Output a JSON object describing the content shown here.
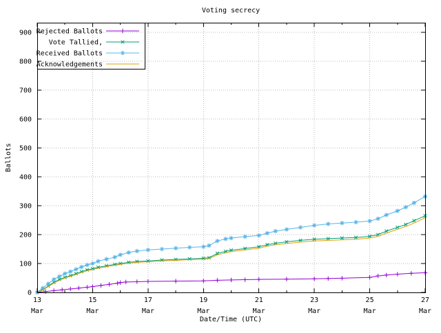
{
  "chart_data": {
    "type": "line",
    "title": "Voting secrecy",
    "xlabel": "Date/Time (UTC)",
    "ylabel": "Ballots",
    "xlim": [
      0,
      14
    ],
    "ylim": [
      0,
      900
    ],
    "ytick_step": 100,
    "grid": true,
    "legend_position": "top-left",
    "xticks": [
      {
        "x": 0,
        "label": "13",
        "sub": "Mar"
      },
      {
        "x": 2,
        "label": "15",
        "sub": "Mar"
      },
      {
        "x": 4,
        "label": "17",
        "sub": "Mar"
      },
      {
        "x": 6,
        "label": "19",
        "sub": "Mar"
      },
      {
        "x": 8,
        "label": "21",
        "sub": "Mar"
      },
      {
        "x": 10,
        "label": "23",
        "sub": "Mar"
      },
      {
        "x": 12,
        "label": "25",
        "sub": "Mar"
      },
      {
        "x": 14,
        "label": "27",
        "sub": "Mar"
      }
    ],
    "x_minor_ticks": [
      1,
      3,
      5,
      7,
      9,
      11,
      13
    ],
    "series": [
      {
        "name": "Rejected Ballots",
        "color": "#9400d3",
        "marker": "plus",
        "points": [
          [
            0,
            0
          ],
          [
            0.3,
            3
          ],
          [
            0.6,
            6
          ],
          [
            0.9,
            9
          ],
          [
            1.2,
            12
          ],
          [
            1.5,
            15
          ],
          [
            1.8,
            18
          ],
          [
            2.0,
            20
          ],
          [
            2.3,
            24
          ],
          [
            2.6,
            28
          ],
          [
            2.9,
            32
          ],
          [
            3.0,
            34
          ],
          [
            3.2,
            36
          ],
          [
            3.6,
            37
          ],
          [
            4.0,
            38
          ],
          [
            5.0,
            39
          ],
          [
            6.0,
            40
          ],
          [
            6.5,
            42
          ],
          [
            7.0,
            43
          ],
          [
            7.5,
            44
          ],
          [
            8.0,
            45
          ],
          [
            9.0,
            46
          ],
          [
            10.0,
            47
          ],
          [
            10.5,
            48
          ],
          [
            11.0,
            49
          ],
          [
            12.0,
            52
          ],
          [
            12.3,
            57
          ],
          [
            12.6,
            60
          ],
          [
            13.0,
            63
          ],
          [
            13.5,
            66
          ],
          [
            14.0,
            68
          ]
        ]
      },
      {
        "name": "Vote Tallied,",
        "color": "#009e73",
        "marker": "x",
        "points": [
          [
            0,
            0
          ],
          [
            0.2,
            10
          ],
          [
            0.4,
            22
          ],
          [
            0.6,
            35
          ],
          [
            0.8,
            45
          ],
          [
            1.0,
            52
          ],
          [
            1.2,
            58
          ],
          [
            1.4,
            65
          ],
          [
            1.6,
            72
          ],
          [
            1.8,
            78
          ],
          [
            2.0,
            82
          ],
          [
            2.2,
            87
          ],
          [
            2.5,
            92
          ],
          [
            2.8,
            97
          ],
          [
            3.0,
            100
          ],
          [
            3.3,
            104
          ],
          [
            3.6,
            107
          ],
          [
            4.0,
            109
          ],
          [
            4.5,
            112
          ],
          [
            5.0,
            114
          ],
          [
            5.5,
            116
          ],
          [
            6.0,
            118
          ],
          [
            6.2,
            120
          ],
          [
            6.5,
            135
          ],
          [
            6.8,
            142
          ],
          [
            7.0,
            146
          ],
          [
            7.5,
            152
          ],
          [
            8.0,
            158
          ],
          [
            8.3,
            165
          ],
          [
            8.6,
            170
          ],
          [
            9.0,
            175
          ],
          [
            9.5,
            180
          ],
          [
            10.0,
            184
          ],
          [
            10.5,
            186
          ],
          [
            11.0,
            188
          ],
          [
            11.5,
            190
          ],
          [
            12.0,
            194
          ],
          [
            12.3,
            200
          ],
          [
            12.6,
            212
          ],
          [
            13.0,
            225
          ],
          [
            13.3,
            235
          ],
          [
            13.6,
            248
          ],
          [
            14.0,
            265
          ]
        ]
      },
      {
        "name": "Received Ballots",
        "color": "#56b4e9",
        "marker": "star",
        "points": [
          [
            0,
            0
          ],
          [
            0.2,
            15
          ],
          [
            0.4,
            30
          ],
          [
            0.6,
            45
          ],
          [
            0.8,
            55
          ],
          [
            1.0,
            65
          ],
          [
            1.2,
            72
          ],
          [
            1.4,
            80
          ],
          [
            1.6,
            88
          ],
          [
            1.8,
            95
          ],
          [
            2.0,
            100
          ],
          [
            2.2,
            108
          ],
          [
            2.5,
            115
          ],
          [
            2.8,
            122
          ],
          [
            3.0,
            130
          ],
          [
            3.3,
            138
          ],
          [
            3.6,
            143
          ],
          [
            4.0,
            147
          ],
          [
            4.5,
            150
          ],
          [
            5.0,
            153
          ],
          [
            5.5,
            156
          ],
          [
            6.0,
            158
          ],
          [
            6.2,
            162
          ],
          [
            6.5,
            178
          ],
          [
            6.8,
            185
          ],
          [
            7.0,
            188
          ],
          [
            7.5,
            193
          ],
          [
            8.0,
            197
          ],
          [
            8.3,
            205
          ],
          [
            8.6,
            212
          ],
          [
            9.0,
            218
          ],
          [
            9.5,
            225
          ],
          [
            10.0,
            232
          ],
          [
            10.5,
            237
          ],
          [
            11.0,
            240
          ],
          [
            11.5,
            243
          ],
          [
            12.0,
            247
          ],
          [
            12.3,
            255
          ],
          [
            12.6,
            268
          ],
          [
            13.0,
            282
          ],
          [
            13.3,
            295
          ],
          [
            13.6,
            310
          ],
          [
            14.0,
            332
          ]
        ]
      },
      {
        "name": "Acknowledgements",
        "color": "#e69f00",
        "marker": "none",
        "points": [
          [
            0,
            0
          ],
          [
            0.2,
            8
          ],
          [
            0.4,
            20
          ],
          [
            0.6,
            32
          ],
          [
            0.8,
            42
          ],
          [
            1.0,
            50
          ],
          [
            1.2,
            56
          ],
          [
            1.4,
            62
          ],
          [
            1.6,
            69
          ],
          [
            1.8,
            75
          ],
          [
            2.0,
            79
          ],
          [
            2.2,
            84
          ],
          [
            2.5,
            89
          ],
          [
            2.8,
            94
          ],
          [
            3.0,
            97
          ],
          [
            3.3,
            101
          ],
          [
            3.6,
            104
          ],
          [
            4.0,
            106
          ],
          [
            4.5,
            109
          ],
          [
            5.0,
            111
          ],
          [
            5.5,
            113
          ],
          [
            6.0,
            115
          ],
          [
            6.2,
            117
          ],
          [
            6.5,
            130
          ],
          [
            6.8,
            137
          ],
          [
            7.0,
            141
          ],
          [
            7.5,
            147
          ],
          [
            8.0,
            153
          ],
          [
            8.3,
            160
          ],
          [
            8.6,
            165
          ],
          [
            9.0,
            169
          ],
          [
            9.5,
            174
          ],
          [
            10.0,
            178
          ],
          [
            10.5,
            180
          ],
          [
            11.0,
            182
          ],
          [
            11.5,
            184
          ],
          [
            12.0,
            188
          ],
          [
            12.3,
            194
          ],
          [
            12.6,
            205
          ],
          [
            13.0,
            218
          ],
          [
            13.3,
            228
          ],
          [
            13.6,
            240
          ],
          [
            14.0,
            258
          ]
        ]
      }
    ]
  }
}
